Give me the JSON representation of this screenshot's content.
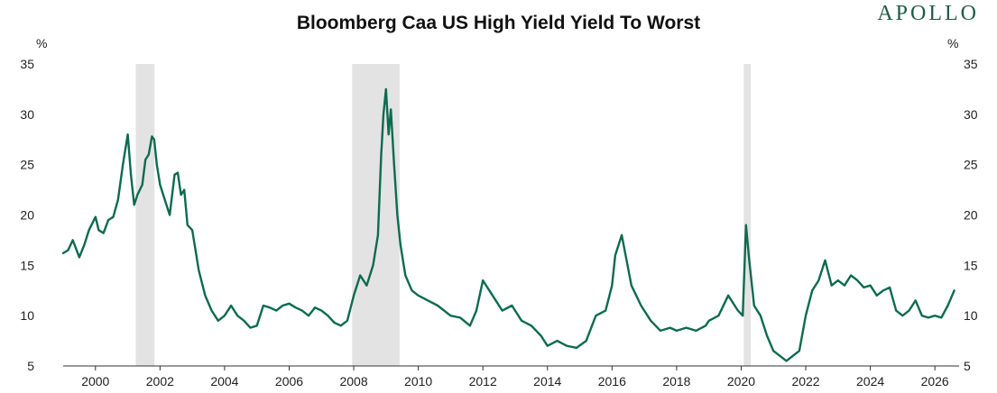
{
  "brand": "APOLLO",
  "chart_data": {
    "type": "line",
    "title": "Bloomberg Caa US High Yield Yield To Worst",
    "ylabel_left": "%",
    "ylabel_right": "%",
    "xlim": [
      1999.0,
      2026.75
    ],
    "ylim": [
      5,
      35
    ],
    "x_ticks": [
      2000,
      2002,
      2004,
      2006,
      2008,
      2010,
      2012,
      2014,
      2016,
      2018,
      2020,
      2022,
      2024,
      2026
    ],
    "x_tick_labels": [
      "2000",
      "2002",
      "2004",
      "2006",
      "2008",
      "2010",
      "2012",
      "2014",
      "2016",
      "2018",
      "2020",
      "2022",
      "2024",
      "2026"
    ],
    "y_ticks": [
      5,
      10,
      15,
      20,
      25,
      30,
      35
    ],
    "y_tick_labels": [
      "5",
      "10",
      "15",
      "20",
      "25",
      "30",
      "35"
    ],
    "grid": false,
    "colors": {
      "line": "#0d6b4f",
      "recession": "#e3e3e3"
    },
    "recessions": [
      {
        "start": 2001.25,
        "end": 2001.83
      },
      {
        "start": 2007.95,
        "end": 2009.42
      },
      {
        "start": 2020.08,
        "end": 2020.3
      }
    ],
    "series": [
      {
        "x": [
          1999.0,
          1999.15,
          1999.3,
          1999.5,
          1999.65,
          1999.8,
          2000.0,
          2000.1,
          2000.25,
          2000.4,
          2000.55,
          2000.7,
          2000.85,
          2001.0,
          2001.1,
          2001.2,
          2001.3,
          2001.45,
          2001.55,
          2001.65,
          2001.75,
          2001.82,
          2001.9,
          2002.0,
          2002.15,
          2002.3,
          2002.45,
          2002.55,
          2002.65,
          2002.75,
          2002.85,
          2003.0,
          2003.2,
          2003.4,
          2003.6,
          2003.8,
          2004.0,
          2004.2,
          2004.4,
          2004.6,
          2004.8,
          2005.0,
          2005.2,
          2005.4,
          2005.6,
          2005.8,
          2006.0,
          2006.2,
          2006.4,
          2006.6,
          2006.8,
          2007.0,
          2007.2,
          2007.4,
          2007.6,
          2007.8,
          2008.0,
          2008.2,
          2008.4,
          2008.6,
          2008.75,
          2008.85,
          2008.92,
          2009.0,
          2009.08,
          2009.15,
          2009.25,
          2009.35,
          2009.45,
          2009.6,
          2009.8,
          2010.0,
          2010.3,
          2010.6,
          2011.0,
          2011.3,
          2011.6,
          2011.8,
          2012.0,
          2012.3,
          2012.6,
          2012.9,
          2013.2,
          2013.5,
          2013.8,
          2014.0,
          2014.3,
          2014.6,
          2014.9,
          2015.2,
          2015.5,
          2015.8,
          2016.0,
          2016.1,
          2016.3,
          2016.6,
          2016.9,
          2017.2,
          2017.5,
          2017.8,
          2018.0,
          2018.3,
          2018.6,
          2018.9,
          2019.0,
          2019.3,
          2019.6,
          2019.9,
          2020.05,
          2020.15,
          2020.25,
          2020.4,
          2020.6,
          2020.8,
          2021.0,
          2021.2,
          2021.4,
          2021.6,
          2021.8,
          2022.0,
          2022.2,
          2022.4,
          2022.6,
          2022.8,
          2023.0,
          2023.2,
          2023.4,
          2023.6,
          2023.8,
          2024.0,
          2024.2,
          2024.4,
          2024.6,
          2024.8,
          2025.0,
          2025.2,
          2025.4,
          2025.6,
          2025.8,
          2026.0,
          2026.2,
          2026.4,
          2026.6
        ],
        "y": [
          16.2,
          16.5,
          17.5,
          15.8,
          17.0,
          18.5,
          19.8,
          18.5,
          18.2,
          19.5,
          19.8,
          21.5,
          25.0,
          28.0,
          24.0,
          21.0,
          22.0,
          23.0,
          25.5,
          26.0,
          27.8,
          27.5,
          25.0,
          23.0,
          21.5,
          20.0,
          24.0,
          24.2,
          22.0,
          22.5,
          19.0,
          18.5,
          14.5,
          12.0,
          10.5,
          9.5,
          10.0,
          11.0,
          10.0,
          9.5,
          8.8,
          9.0,
          11.0,
          10.8,
          10.5,
          11.0,
          11.2,
          10.8,
          10.5,
          10.0,
          10.8,
          10.5,
          10.0,
          9.3,
          9.0,
          9.5,
          12.0,
          14.0,
          13.0,
          15.0,
          18.0,
          26.0,
          30.0,
          32.5,
          28.0,
          30.5,
          25.0,
          20.0,
          17.0,
          14.0,
          12.5,
          12.0,
          11.5,
          11.0,
          10.0,
          9.8,
          9.0,
          10.5,
          13.5,
          12.0,
          10.5,
          11.0,
          9.5,
          9.0,
          8.0,
          7.0,
          7.5,
          7.0,
          6.8,
          7.5,
          10.0,
          10.5,
          13.0,
          16.0,
          18.0,
          13.0,
          11.0,
          9.5,
          8.5,
          8.8,
          8.5,
          8.8,
          8.5,
          9.0,
          9.5,
          10.0,
          12.0,
          10.5,
          10.0,
          19.0,
          15.5,
          11.0,
          10.0,
          8.0,
          6.5,
          6.0,
          5.5,
          6.0,
          6.5,
          10.0,
          12.5,
          13.5,
          15.5,
          13.0,
          13.5,
          13.0,
          14.0,
          13.5,
          12.8,
          13.0,
          12.0,
          12.5,
          12.8,
          10.5,
          10.0,
          10.5,
          11.5,
          10.0,
          9.8,
          10.0,
          9.8,
          11.0,
          12.5
        ]
      }
    ]
  }
}
